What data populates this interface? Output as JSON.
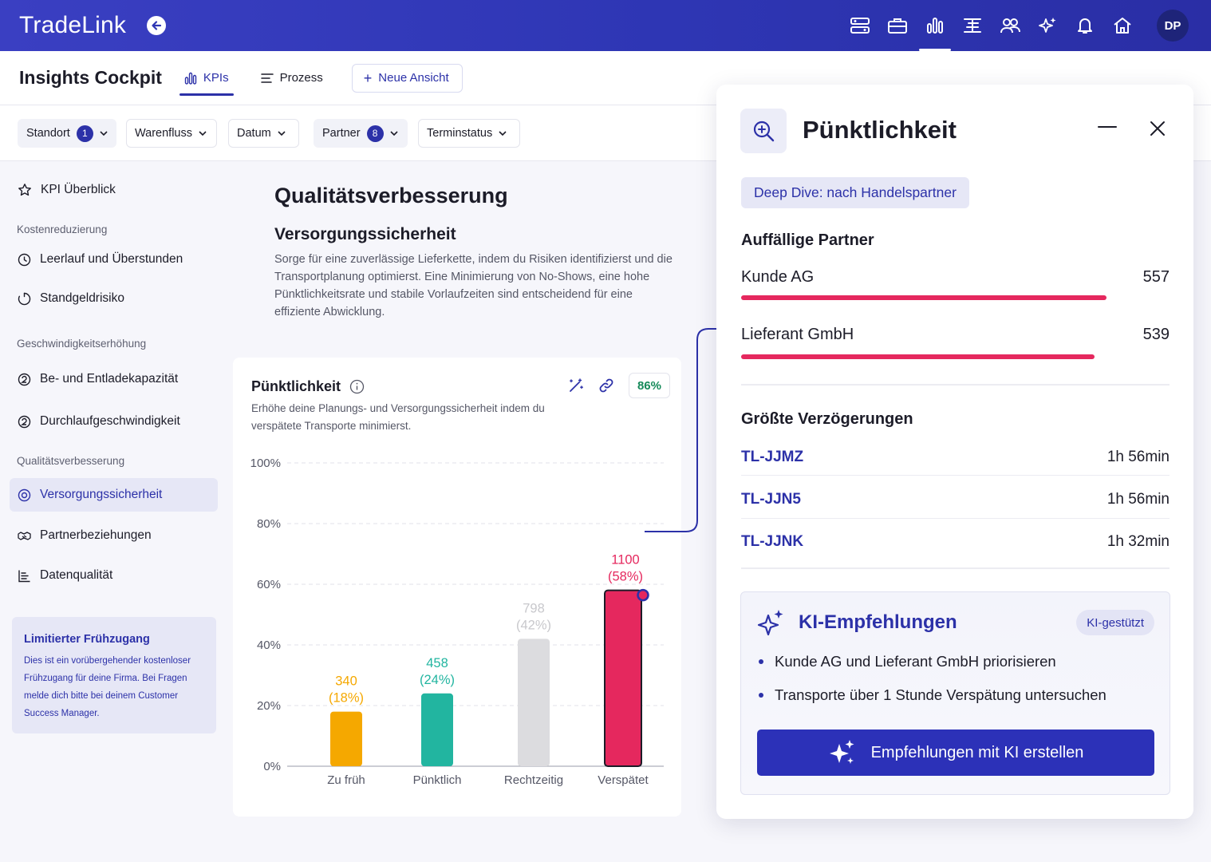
{
  "app": {
    "brand": "TradeLink",
    "avatar_initials": "DP"
  },
  "header": {
    "title": "Insights Cockpit",
    "tabs": [
      {
        "label": "KPIs"
      },
      {
        "label": "Prozess"
      }
    ],
    "new_view_label": "Neue Ansicht"
  },
  "filters": [
    {
      "label": "Standort",
      "badge": "1"
    },
    {
      "label": "Warenfluss"
    },
    {
      "label": "Datum"
    },
    {
      "label": "Partner",
      "badge": "8"
    },
    {
      "label": "Terminstatus"
    }
  ],
  "sidebar": {
    "overview": "KPI Überblick",
    "sections": [
      {
        "title": "Kostenreduzierung",
        "items": [
          "Leerlauf und Überstunden",
          "Standgeldrisiko"
        ]
      },
      {
        "title": "Geschwindigkeitserhöhung",
        "items": [
          "Be- und Entladekapazität",
          "Durchlaufgeschwindigkeit"
        ]
      },
      {
        "title": "Qualitätsverbesserung",
        "items": [
          "Versorgungssicherheit",
          "Partnerbeziehungen",
          "Datenqualität"
        ]
      }
    ],
    "promo": {
      "title": "Limitierter Frühzugang",
      "text": "Dies ist ein vorübergehender kostenloser Frühzugang für deine Firma. Bei Fragen melde dich bitte bei deinem Customer Success Manager."
    }
  },
  "content": {
    "title": "Qualitätsverbesserung",
    "subtitle": "Versorgungssicherheit",
    "description": "Sorge für eine zuverlässige Lieferkette, indem du Risiken identifizierst und die Transportplanung optimierst. Eine Minimierung von No-Shows, eine hohe Pünktlichkeitsrate und stabile Vorlaufzeiten sind entscheidend für eine effiziente Abwicklung."
  },
  "kpi_card": {
    "title": "Pünktlichkeit",
    "description": "Erhöhe deine Planungs- und Versorgungssicherheit indem du verspätete Transporte minimierst.",
    "badge": "86%"
  },
  "chart_data": {
    "type": "bar",
    "title": "Pünktlichkeit",
    "categories": [
      "Zu früh",
      "Pünktlich",
      "Rechtzeitig",
      "Verspätet"
    ],
    "values": [
      18,
      24,
      42,
      58
    ],
    "counts": [
      340,
      458,
      798,
      1100
    ],
    "data_labels": [
      [
        "340",
        "(18%)"
      ],
      [
        "458",
        "(24%)"
      ],
      [
        "798",
        "(42%)"
      ],
      [
        "1100",
        "(58%)"
      ]
    ],
    "colors": [
      "#f5a800",
      "#22b5a0",
      "#dcdcdf",
      "#e5285e"
    ],
    "label_colors": [
      "#f5a800",
      "#22b5a0",
      "#c8c8cc",
      "#e5285e"
    ],
    "ylim": [
      0,
      100
    ],
    "yticks": [
      "0%",
      "20%",
      "40%",
      "60%",
      "80%",
      "100%"
    ],
    "ytick_values": [
      0,
      20,
      40,
      60,
      80,
      100
    ],
    "grid": true,
    "highlighted": "Verspätet"
  },
  "panel": {
    "title": "Pünktlichkeit",
    "deep_dive": "Deep Dive: nach Handelspartner",
    "partners_title": "Auffällige Partner",
    "partners": [
      {
        "name": "Kunde AG",
        "value": "557",
        "share": 1.0
      },
      {
        "name": "Lieferant GmbH",
        "value": "539",
        "share": 0.968
      }
    ],
    "delays_title": "Größte Verzögerungen",
    "delays": [
      {
        "id": "TL-JJMZ",
        "time": "1h 56min"
      },
      {
        "id": "TL-JJN5",
        "time": "1h 56min"
      },
      {
        "id": "TL-JJNK",
        "time": "1h 32min"
      }
    ],
    "ai": {
      "title": "KI-Empfehlungen",
      "badge": "KI-gestützt",
      "items": [
        "Kunde AG und Lieferant GmbH priorisieren",
        "Transporte über 1 Stunde Verspätung untersuchen"
      ],
      "button": "Empfehlungen mit KI erstellen"
    }
  },
  "colors": {
    "primary": "#2c31a8",
    "accent_red": "#e5285e",
    "topbar": "#2e36b4"
  }
}
